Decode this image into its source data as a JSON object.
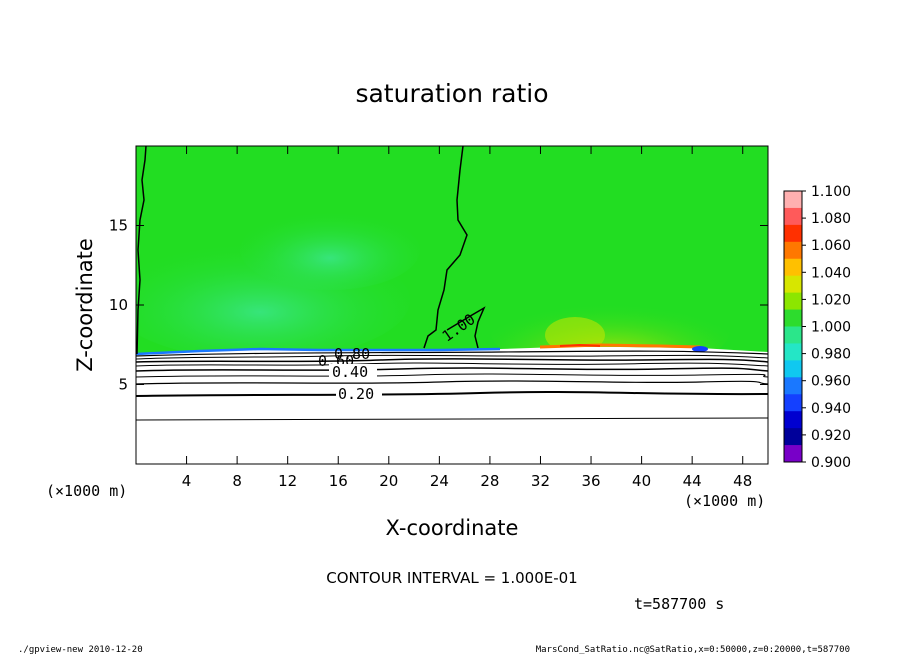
{
  "chart_data": {
    "type": "heatmap",
    "title": "saturation ratio",
    "xlabel": "X-coordinate",
    "ylabel": "Z-coordinate",
    "x_unit": "(×1000 m)",
    "y_unit": "(×1000 m)",
    "xlim": [
      0,
      50
    ],
    "ylim": [
      0,
      20
    ],
    "x_ticks": [
      4,
      8,
      12,
      16,
      20,
      24,
      28,
      32,
      36,
      40,
      44,
      48
    ],
    "y_ticks": [
      5,
      10,
      15
    ],
    "contour_interval_text": "CONTOUR INTERVAL = 1.000E-01",
    "time_text": "t=587700 s",
    "contour_labels": [
      "1.00",
      "0.80",
      "0.60",
      "0.40",
      "0.20"
    ],
    "colorbar": {
      "ticks": [
        "1.100",
        "1.080",
        "1.060",
        "1.040",
        "1.020",
        "1.000",
        "0.980",
        "0.960",
        "0.940",
        "0.920",
        "0.900"
      ],
      "colors": [
        "#ffb0b0",
        "#ff5a5a",
        "#ff3000",
        "#ff7800",
        "#ffc000",
        "#d7e600",
        "#8ce600",
        "#2ddc2d",
        "#2be68a",
        "#24e6c6",
        "#10c8f0",
        "#1a78ff",
        "#1440ff",
        "#0000d0",
        "#00009a",
        "#7800c8"
      ]
    },
    "grid": false,
    "legend": "colorbar-right"
  },
  "footer": {
    "left": "./gpview-new  2010-12-20",
    "right": "MarsCond_SatRatio.nc@SatRatio,x=0:50000,z=0:20000,t=587700"
  },
  "colors": {
    "field_green": "#22dd22",
    "field_light": "#48e858",
    "below_surface": "#ffffff"
  }
}
